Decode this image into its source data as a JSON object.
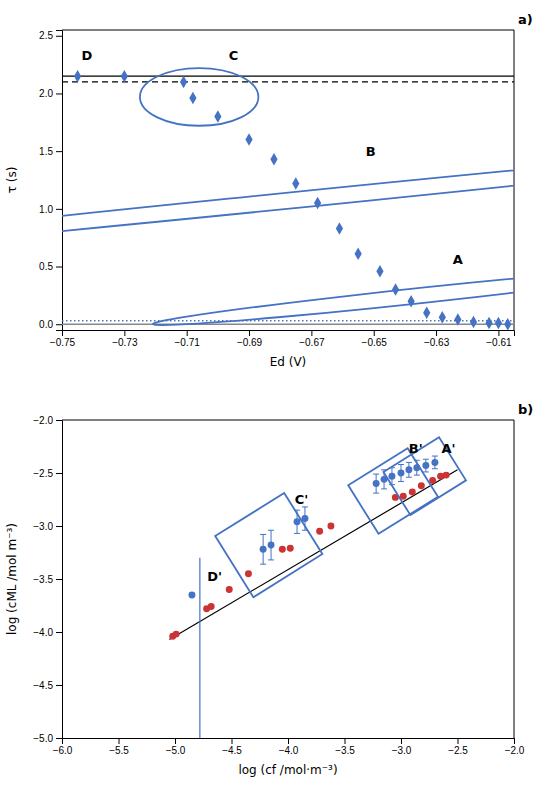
{
  "chart_data": [
    {
      "type": "scatter",
      "title": "a)",
      "xlabel": "Ed (V)",
      "ylabel": "τ (s)",
      "xlim": [
        -0.75,
        -0.605
      ],
      "ylim": [
        -0.05,
        2.55
      ],
      "xticks": [
        {
          "value": -0.75,
          "label": "−0.75"
        },
        {
          "value": -0.73,
          "label": "−0.73"
        },
        {
          "value": -0.71,
          "label": "−0.71"
        },
        {
          "value": -0.69,
          "label": "−0.69"
        },
        {
          "value": -0.67,
          "label": "−0.67"
        },
        {
          "value": -0.65,
          "label": "−0.65"
        },
        {
          "value": -0.63,
          "label": "−0.63"
        },
        {
          "value": -0.61,
          "label": "−0.61"
        }
      ],
      "yticks": [
        {
          "value": 0.0,
          "label": "0.0"
        },
        {
          "value": 0.5,
          "label": "0.5"
        },
        {
          "value": 1.0,
          "label": "1.0"
        },
        {
          "value": 1.5,
          "label": "1.5"
        },
        {
          "value": 2.0,
          "label": "2.0"
        },
        {
          "value": 2.5,
          "label": "2.5"
        }
      ],
      "grid": false,
      "series": [
        {
          "type": "hline",
          "color": "#000000",
          "line_style": "solid",
          "values": [
            2.15
          ]
        },
        {
          "type": "hline",
          "color": "#000000",
          "line_style": "dashed",
          "values": [
            2.1
          ]
        },
        {
          "type": "hline",
          "color": "#4472C4",
          "line_style": "dotted",
          "values": [
            0.03
          ]
        },
        {
          "type": "hline",
          "color": "#888888",
          "line_style": "solid",
          "values": [
            0.0
          ]
        },
        {
          "type": "scatter",
          "marker": "diamond",
          "color": "#4472C4",
          "x": [
            -0.745,
            -0.73,
            -0.711,
            -0.708,
            -0.7,
            -0.69,
            -0.682,
            -0.675,
            -0.668,
            -0.661,
            -0.655,
            -0.648,
            -0.643,
            -0.638,
            -0.633,
            -0.628,
            -0.623,
            -0.618,
            -0.613,
            -0.61,
            -0.607
          ],
          "values": [
            2.15,
            2.15,
            2.1,
            1.96,
            1.8,
            1.6,
            1.43,
            1.22,
            1.05,
            0.83,
            0.61,
            0.46,
            0.3,
            0.2,
            0.1,
            0.06,
            0.04,
            0.02,
            0.01,
            0.01,
            0.0
          ]
        }
      ],
      "ellipses": [
        {
          "cx": -0.706,
          "cy": 1.97,
          "width": 0.038,
          "height": 0.5,
          "angle": 0,
          "color": "#4472C4"
        },
        {
          "cx": -0.674,
          "cy": 1.08,
          "width": 0.048,
          "height": 1.3,
          "angle": -20,
          "color": "#4472C4"
        },
        {
          "cx": -0.638,
          "cy": 0.24,
          "width": 0.042,
          "height": 0.52,
          "angle": -18,
          "color": "#4472C4"
        }
      ],
      "annotations": [
        {
          "text": "A",
          "x": -0.623,
          "y": 0.56
        },
        {
          "text": "B",
          "x": -0.651,
          "y": 1.5
        },
        {
          "text": "C",
          "x": -0.695,
          "y": 2.33
        },
        {
          "text": "D",
          "x": -0.742,
          "y": 2.33
        }
      ]
    },
    {
      "type": "scatter",
      "title": "b)",
      "xlabel": "log (cf /mol·m⁻³)",
      "ylabel": "log (cML /mol m⁻³)",
      "xlim": [
        -6.0,
        -2.0
      ],
      "ylim": [
        -5.0,
        -2.0
      ],
      "xticks": [
        {
          "value": -6.0,
          "label": "−6.0"
        },
        {
          "value": -5.5,
          "label": "−5.5"
        },
        {
          "value": -5.0,
          "label": "−5.0"
        },
        {
          "value": -4.5,
          "label": "−4.5"
        },
        {
          "value": -4.0,
          "label": "−4.0"
        },
        {
          "value": -3.5,
          "label": "−3.5"
        },
        {
          "value": -3.0,
          "label": "−3.0"
        },
        {
          "value": -2.5,
          "label": "−2.5"
        },
        {
          "value": -2.0,
          "label": "−2.0"
        }
      ],
      "yticks": [
        {
          "value": -5.0,
          "label": "−5.0"
        },
        {
          "value": -4.5,
          "label": "−4.5"
        },
        {
          "value": -4.0,
          "label": "−4.0"
        },
        {
          "value": -3.5,
          "label": "−3.5"
        },
        {
          "value": -3.0,
          "label": "−3.0"
        },
        {
          "value": -2.5,
          "label": "−2.5"
        },
        {
          "value": -2.0,
          "label": "−2.0"
        }
      ],
      "grid": false,
      "series": [
        {
          "type": "line",
          "color": "#000000",
          "line_style": "solid",
          "x": [
            -5.05,
            -2.5
          ],
          "values": [
            -4.07,
            -2.47
          ]
        },
        {
          "type": "line",
          "color": "#4472C4",
          "line_style": "solid",
          "x": [
            -4.78,
            -4.78
          ],
          "values": [
            -5.0,
            -3.3
          ]
        },
        {
          "type": "scatter",
          "marker": "circle",
          "color": "#CC3333",
          "x": [
            -5.02,
            -4.99,
            -4.72,
            -4.68,
            -4.52,
            -4.35,
            -4.05,
            -3.98,
            -3.72,
            -3.62,
            -3.05,
            -2.98,
            -2.9,
            -2.82,
            -2.72,
            -2.65,
            -2.6
          ],
          "values": [
            -4.04,
            -4.02,
            -3.78,
            -3.76,
            -3.6,
            -3.45,
            -3.22,
            -3.21,
            -3.05,
            -3.0,
            -2.73,
            -2.72,
            -2.68,
            -2.62,
            -2.57,
            -2.53,
            -2.52
          ]
        },
        {
          "type": "scatter",
          "marker": "circle",
          "color": "#4472C4",
          "x": [
            -4.85,
            -4.22,
            -4.15,
            -3.92,
            -3.85,
            -3.22,
            -3.15,
            -3.08,
            -3.0,
            -2.93,
            -2.86,
            -2.78,
            -2.7
          ],
          "values": [
            -3.65,
            -3.22,
            -3.18,
            -2.96,
            -2.93,
            -2.6,
            -2.56,
            -2.53,
            -2.5,
            -2.47,
            -2.45,
            -2.43,
            -2.4
          ],
          "errors": [
            null,
            0.14,
            0.14,
            0.11,
            0.11,
            0.09,
            0.09,
            0.08,
            0.08,
            0.07,
            0.07,
            0.06,
            0.06
          ]
        }
      ],
      "rectangles": [
        {
          "cx": -4.17,
          "cy": -3.18,
          "width": 0.72,
          "height": 0.68,
          "angle": 32,
          "color": "#4472C4"
        },
        {
          "cx": -3.07,
          "cy": -2.67,
          "width": 0.62,
          "height": 0.54,
          "angle": 32,
          "color": "#4472C4"
        },
        {
          "cx": -2.79,
          "cy": -2.53,
          "width": 0.58,
          "height": 0.48,
          "angle": 32,
          "color": "#4472C4"
        }
      ],
      "annotations": [
        {
          "text": "A'",
          "x": -2.58,
          "y": -2.27
        },
        {
          "text": "B'",
          "x": -2.87,
          "y": -2.27
        },
        {
          "text": "C'",
          "x": -3.88,
          "y": -2.75
        },
        {
          "text": "D'",
          "x": -4.65,
          "y": -3.48
        }
      ]
    }
  ]
}
